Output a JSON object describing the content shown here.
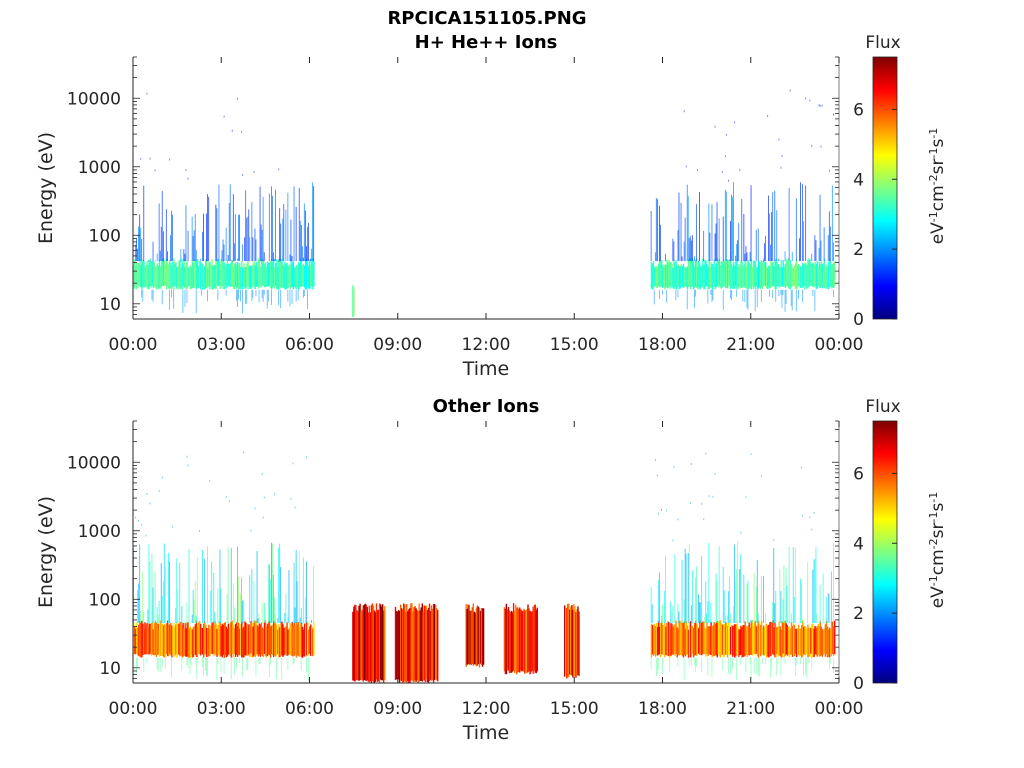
{
  "figure_title": "RPCICA151105.PNG",
  "colormap": [
    "#00007f",
    "#0000ff",
    "#007fff",
    "#00ffff",
    "#7fff7f",
    "#ffff00",
    "#ff7f00",
    "#ff0000",
    "#7f0000"
  ],
  "chart_data": [
    {
      "type": "heatmap",
      "title": "H+ He++ Ions",
      "xlabel": "Time",
      "ylabel": "Energy (eV)",
      "x_ticks": [
        "00:00",
        "03:00",
        "06:00",
        "09:00",
        "12:00",
        "15:00",
        "18:00",
        "21:00",
        "00:00"
      ],
      "xlim_hours": [
        0,
        24
      ],
      "y_ticks": [
        "10",
        "100",
        "1000",
        "10000"
      ],
      "y_tick_values": [
        10,
        100,
        1000,
        10000
      ],
      "yscale": "log",
      "ylim": [
        6,
        40000
      ],
      "colorbar": {
        "label": "Flux",
        "unit": "eV-1cm-2sr-1s-1",
        "ticks": [
          "0",
          "2",
          "4",
          "6"
        ],
        "range": [
          0,
          7.5
        ]
      },
      "blocks": [
        {
          "t0": 0.0,
          "t1": 6.15,
          "e_lo": 16,
          "e_hi": 42,
          "level": 3.4,
          "sparse_hi": 600,
          "sparse_level": 1.6
        },
        {
          "t0": 7.45,
          "t1": 7.52,
          "e_lo": 6,
          "e_hi": 20,
          "level": 3.8,
          "sparse_hi": 0,
          "sparse_level": 0
        },
        {
          "t0": 17.6,
          "t1": 23.85,
          "e_lo": 16,
          "e_hi": 42,
          "level": 3.4,
          "sparse_hi": 600,
          "sparse_level": 1.6
        }
      ]
    },
    {
      "type": "heatmap",
      "title": "Other Ions",
      "xlabel": "Time",
      "ylabel": "Energy (eV)",
      "x_ticks": [
        "00:00",
        "03:00",
        "06:00",
        "09:00",
        "12:00",
        "15:00",
        "18:00",
        "21:00",
        "00:00"
      ],
      "xlim_hours": [
        0,
        24
      ],
      "y_ticks": [
        "10",
        "100",
        "1000",
        "10000"
      ],
      "y_tick_values": [
        10,
        100,
        1000,
        10000
      ],
      "yscale": "log",
      "ylim": [
        6,
        40000
      ],
      "colorbar": {
        "label": "Flux",
        "unit": "eV-1cm-2sr-1s-1",
        "ticks": [
          "0",
          "2",
          "4",
          "6"
        ],
        "range": [
          0,
          7.5
        ]
      },
      "blocks": [
        {
          "t0": 0.0,
          "t1": 6.15,
          "e_lo": 14,
          "e_hi": 45,
          "level": 5.9,
          "sparse_hi": 700,
          "sparse_level": 3.0
        },
        {
          "t0": 7.45,
          "t1": 8.55,
          "e_lo": 6,
          "e_hi": 80,
          "level": 6.8,
          "sparse_hi": 0,
          "sparse_level": 0
        },
        {
          "t0": 8.9,
          "t1": 10.35,
          "e_lo": 6,
          "e_hi": 80,
          "level": 6.6,
          "sparse_hi": 0,
          "sparse_level": 0
        },
        {
          "t0": 11.3,
          "t1": 11.9,
          "e_lo": 10,
          "e_hi": 80,
          "level": 6.9,
          "sparse_hi": 0,
          "sparse_level": 0
        },
        {
          "t0": 12.6,
          "t1": 13.75,
          "e_lo": 8,
          "e_hi": 80,
          "level": 6.6,
          "sparse_hi": 0,
          "sparse_level": 0
        },
        {
          "t0": 14.65,
          "t1": 15.15,
          "e_lo": 7,
          "e_hi": 80,
          "level": 6.5,
          "sparse_hi": 0,
          "sparse_level": 0
        },
        {
          "t0": 17.6,
          "t1": 23.85,
          "e_lo": 14,
          "e_hi": 45,
          "level": 5.9,
          "sparse_hi": 700,
          "sparse_level": 3.0
        }
      ]
    }
  ]
}
